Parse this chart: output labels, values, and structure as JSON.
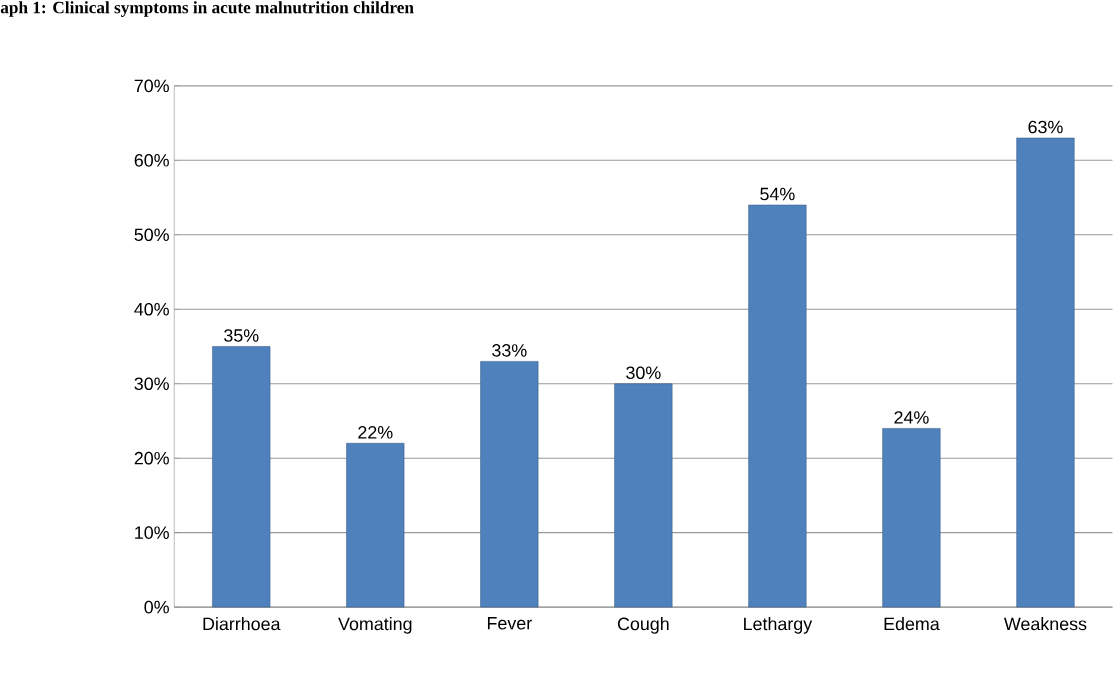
{
  "chart_data": {
    "type": "bar",
    "title": "aph 1: Clinical symptoms in acute malnutrition children",
    "categories": [
      "Diarrhoea",
      "Vomating",
      "Fever",
      "Cough",
      "Lethargy",
      "Edema",
      "Weakness"
    ],
    "values": [
      35,
      22,
      33,
      30,
      54,
      24,
      63
    ],
    "value_labels": [
      "35%",
      "22%",
      "33%",
      "30%",
      "54%",
      "24%",
      "63%"
    ],
    "color": "#4f81bd",
    "ylim": [
      0,
      70
    ],
    "yticks": [
      {
        "value": 0,
        "label": "0%"
      },
      {
        "value": 10,
        "label": "10%"
      },
      {
        "value": 20,
        "label": "20%"
      },
      {
        "value": 30,
        "label": "30%"
      },
      {
        "value": 40,
        "label": "40%"
      },
      {
        "value": 50,
        "label": "50%"
      },
      {
        "value": 60,
        "label": "60%"
      },
      {
        "value": 70,
        "label": "70%"
      }
    ],
    "grid": "y"
  }
}
